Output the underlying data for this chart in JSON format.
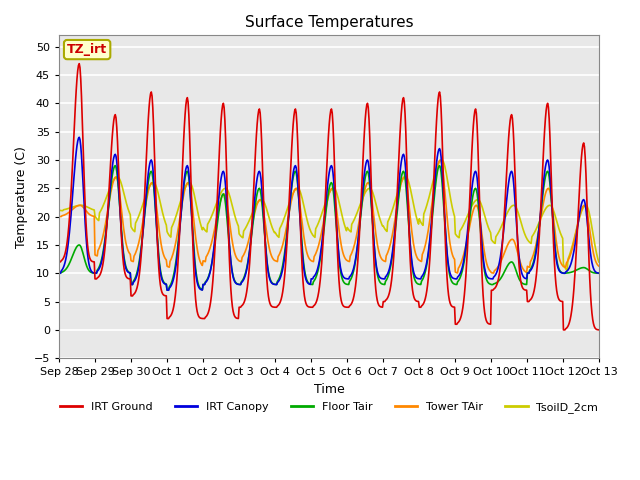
{
  "title": "Surface Temperatures",
  "ylabel": "Temperature (C)",
  "xlabel": "Time",
  "ylim": [
    -5,
    52
  ],
  "yticks": [
    -5,
    0,
    5,
    10,
    15,
    20,
    25,
    30,
    35,
    40,
    45,
    50
  ],
  "xtick_labels": [
    "Sep 28",
    "Sep 29",
    "Sep 30",
    "Oct 1",
    "Oct 2",
    "Oct 3",
    "Oct 4",
    "Oct 5",
    "Oct 6",
    "Oct 7",
    "Oct 8",
    "Oct 9",
    "Oct 10",
    "Oct 11",
    "Oct 12",
    "Oct 13"
  ],
  "series": {
    "IRT Ground": {
      "color": "#dd0000",
      "lw": 1.2
    },
    "IRT Canopy": {
      "color": "#0000dd",
      "lw": 1.2
    },
    "Floor Tair": {
      "color": "#00aa00",
      "lw": 1.2
    },
    "Tower TAir": {
      "color": "#ff8800",
      "lw": 1.2
    },
    "TsoilD_2cm": {
      "color": "#cccc00",
      "lw": 1.2
    }
  },
  "annotation_text": "TZ_irt",
  "annotation_color": "#cc0000",
  "annotation_bg": "#ffffcc",
  "annotation_border": "#aaaa00",
  "plot_bg": "#e8e8e8",
  "grid_color": "white",
  "irt_ground_peaks": [
    47,
    38,
    42,
    41,
    40,
    39,
    39,
    39,
    40,
    41,
    42,
    39,
    38,
    40,
    33
  ],
  "irt_ground_mins": [
    12,
    9,
    6,
    2,
    2,
    4,
    4,
    4,
    4,
    5,
    4,
    1,
    7,
    5,
    0
  ],
  "canopy_peaks": [
    34,
    31,
    30,
    29,
    28,
    28,
    29,
    29,
    30,
    31,
    32,
    28,
    28,
    30,
    23
  ],
  "canopy_mins": [
    10,
    10,
    8,
    7,
    8,
    8,
    8,
    9,
    9,
    9,
    9,
    9,
    9,
    10,
    10
  ],
  "floor_peaks": [
    15,
    29,
    28,
    28,
    24,
    25,
    28,
    26,
    28,
    28,
    29,
    25,
    12,
    28,
    11
  ],
  "floor_mins": [
    10,
    10,
    8,
    7,
    8,
    8,
    8,
    8,
    8,
    8,
    8,
    8,
    8,
    10,
    10
  ],
  "tower_peaks": [
    22,
    27,
    26,
    26,
    24,
    23,
    25,
    25,
    26,
    27,
    30,
    22,
    16,
    25,
    22
  ],
  "tower_mins": [
    20,
    13,
    12,
    11,
    12,
    12,
    12,
    12,
    12,
    12,
    12,
    10,
    10,
    11,
    11
  ],
  "tsoil_peaks": [
    22,
    27,
    26,
    26,
    25,
    23,
    25,
    25,
    25,
    27,
    30,
    23,
    22,
    22,
    22
  ],
  "tsoil_mins": [
    21,
    19,
    17,
    16,
    17,
    16,
    16,
    16,
    17,
    17,
    18,
    16,
    15,
    15,
    10
  ]
}
